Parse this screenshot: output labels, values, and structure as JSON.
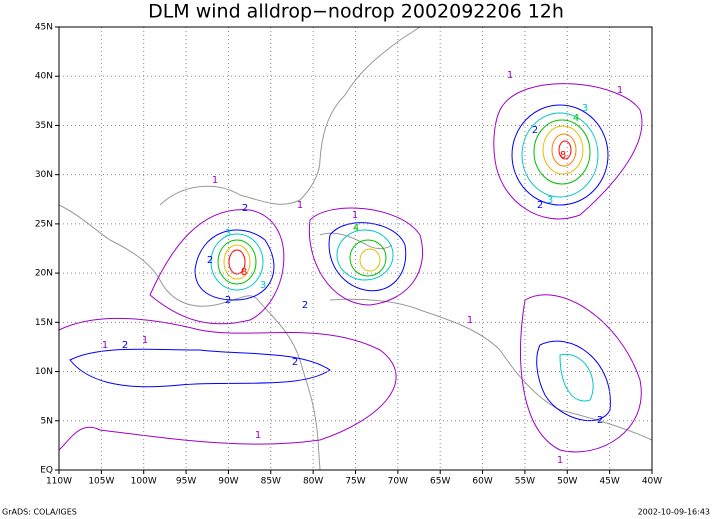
{
  "map": {
    "title": "DLM wind alldrop−nodrop 2002092206 12h",
    "x_axis_labels": [
      "110W",
      "105W",
      "100W",
      "95W",
      "90W",
      "85W",
      "80W",
      "75W",
      "70W",
      "65W",
      "60W",
      "55W",
      "50W",
      "45W",
      "40W"
    ],
    "y_axis_labels": [
      "EQ",
      "5N",
      "10N",
      "15N",
      "20N",
      "25N",
      "30N",
      "35N",
      "40N",
      "45N"
    ],
    "contour_labels": [
      "1",
      "1",
      "1",
      "1",
      "1",
      "1",
      "1",
      "1",
      "1",
      "1",
      "2",
      "2",
      "2",
      "2",
      "2",
      "2",
      "2",
      "2",
      "2",
      "3",
      "3",
      "3",
      "3",
      "4",
      "4",
      "8",
      "8"
    ]
  },
  "footer": {
    "left": "GrADS: COLA/IGES",
    "right": "2002-10-09-16:43"
  }
}
